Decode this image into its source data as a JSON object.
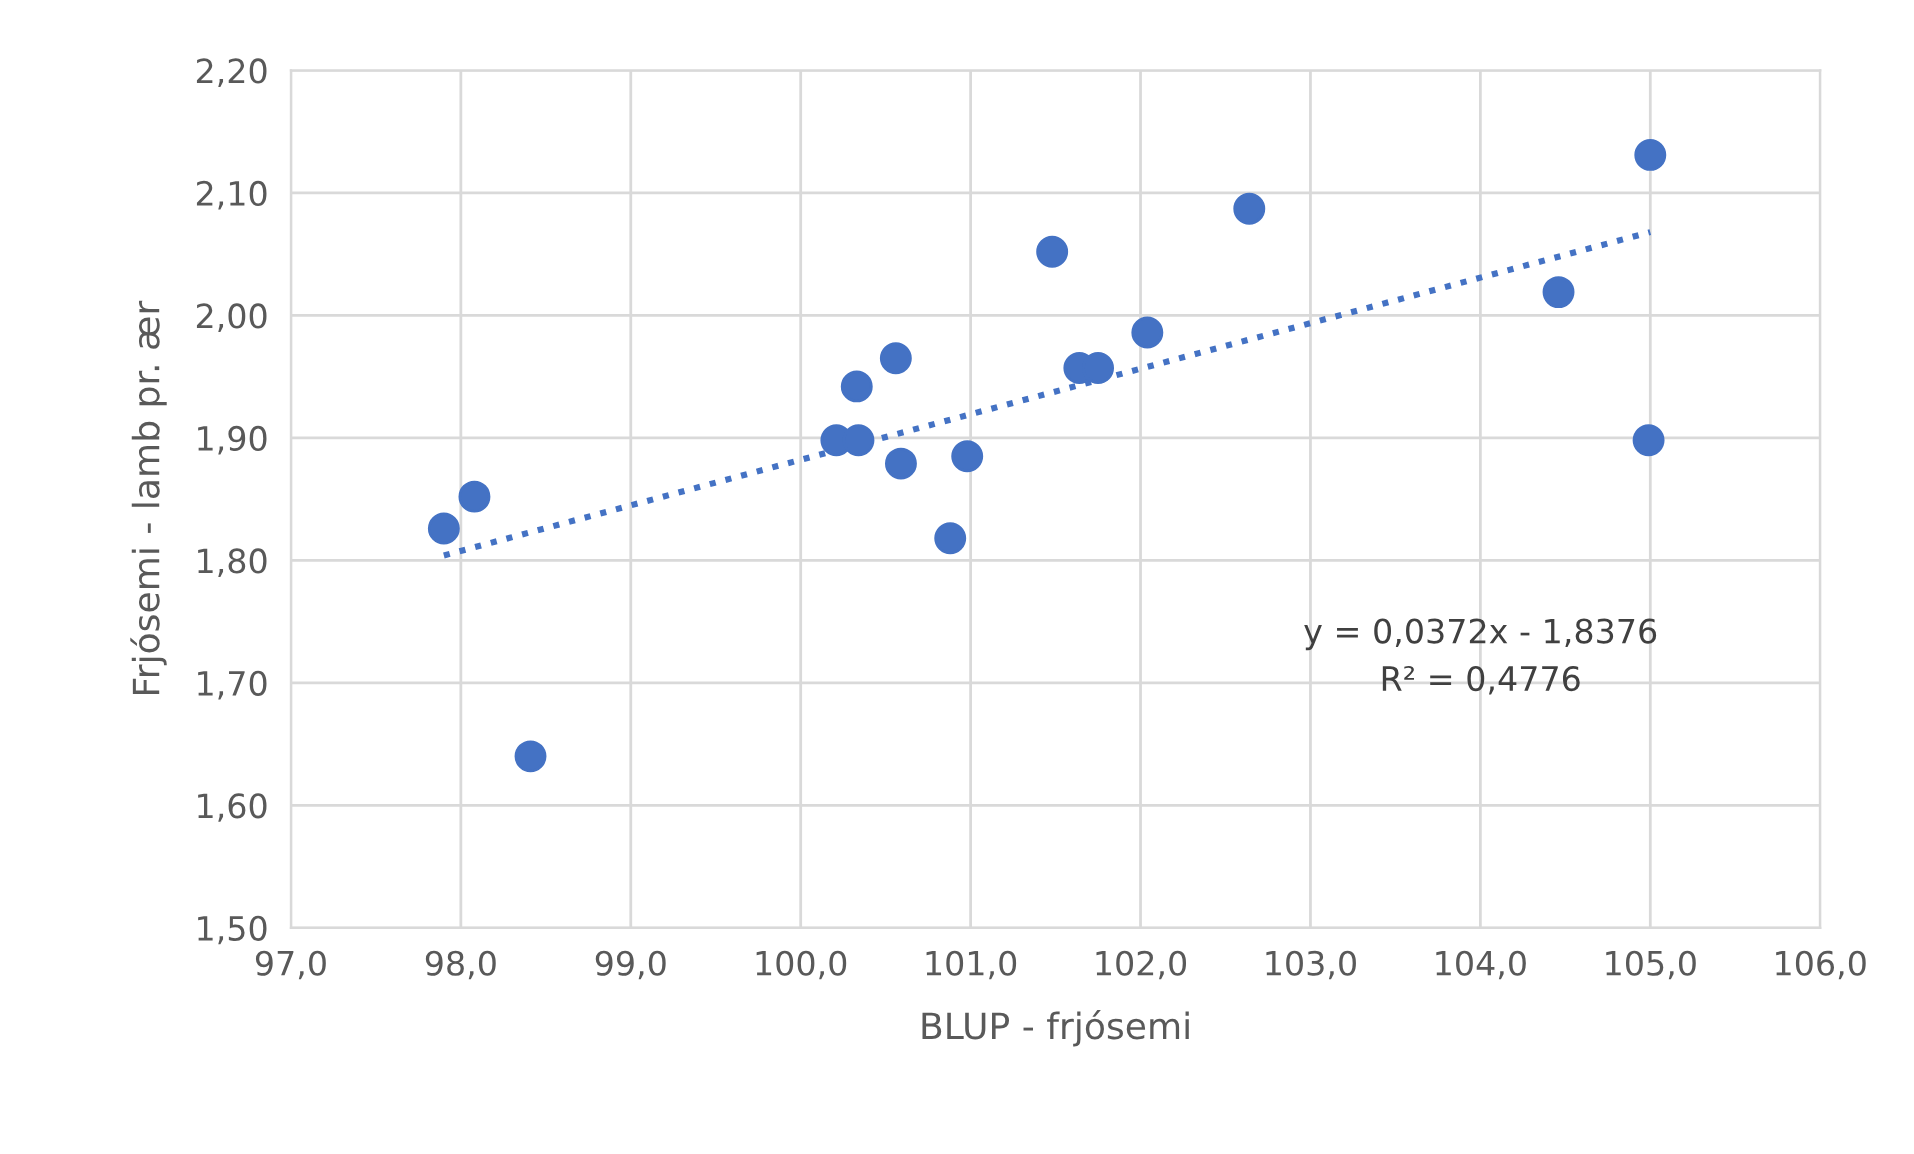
{
  "chart_data": {
    "type": "scatter",
    "xlabel": "BLUP - frjósemi",
    "ylabel": "Frjósemi - lamb pr. ær",
    "series": [
      {
        "color": "#4472c4",
        "marker": "circle",
        "x": [
          97.9,
          98.08,
          98.41,
          100.21,
          100.33,
          100.34,
          100.56,
          100.59,
          100.88,
          100.98,
          101.48,
          101.64,
          101.75,
          102.04,
          102.64,
          104.46,
          105.0,
          104.99
        ],
        "values": [
          1.826,
          1.852,
          1.64,
          1.898,
          1.942,
          1.898,
          1.965,
          1.879,
          1.818,
          1.885,
          2.052,
          1.957,
          1.957,
          1.986,
          2.087,
          2.019,
          2.131,
          1.898
        ]
      },
      {
        "type": "line",
        "color": "#4472c4",
        "line_style": "dotted",
        "x": [
          97.9,
          105.0
        ],
        "values": [
          1.804,
          2.068
        ]
      }
    ],
    "annotations": [
      "y = 0,0372x - 1,8376\nR² = 0,4776"
    ],
    "xlim": [
      97,
      106
    ],
    "xticks": [
      {
        "value": 97,
        "label": "97,0"
      },
      {
        "value": 98,
        "label": "98,0"
      },
      {
        "value": 99,
        "label": "99,0"
      },
      {
        "value": 100,
        "label": "100,0"
      },
      {
        "value": 101,
        "label": "101,0"
      },
      {
        "value": 102,
        "label": "102,0"
      },
      {
        "value": 103,
        "label": "103,0"
      },
      {
        "value": 104,
        "label": "104,0"
      },
      {
        "value": 105,
        "label": "105,0"
      },
      {
        "value": 106,
        "label": "106,0"
      }
    ],
    "ylim": [
      1.5,
      2.2
    ],
    "yticks": [
      {
        "value": 1.5,
        "label": "1,50"
      },
      {
        "value": 1.6,
        "label": "1,60"
      },
      {
        "value": 1.7,
        "label": "1,70"
      },
      {
        "value": 1.8,
        "label": "1,80"
      },
      {
        "value": 1.9,
        "label": "1,90"
      },
      {
        "value": 2.0,
        "label": "2,00"
      },
      {
        "value": 2.1,
        "label": "2,10"
      },
      {
        "value": 2.2,
        "label": "2,20"
      }
    ],
    "grid": true
  }
}
